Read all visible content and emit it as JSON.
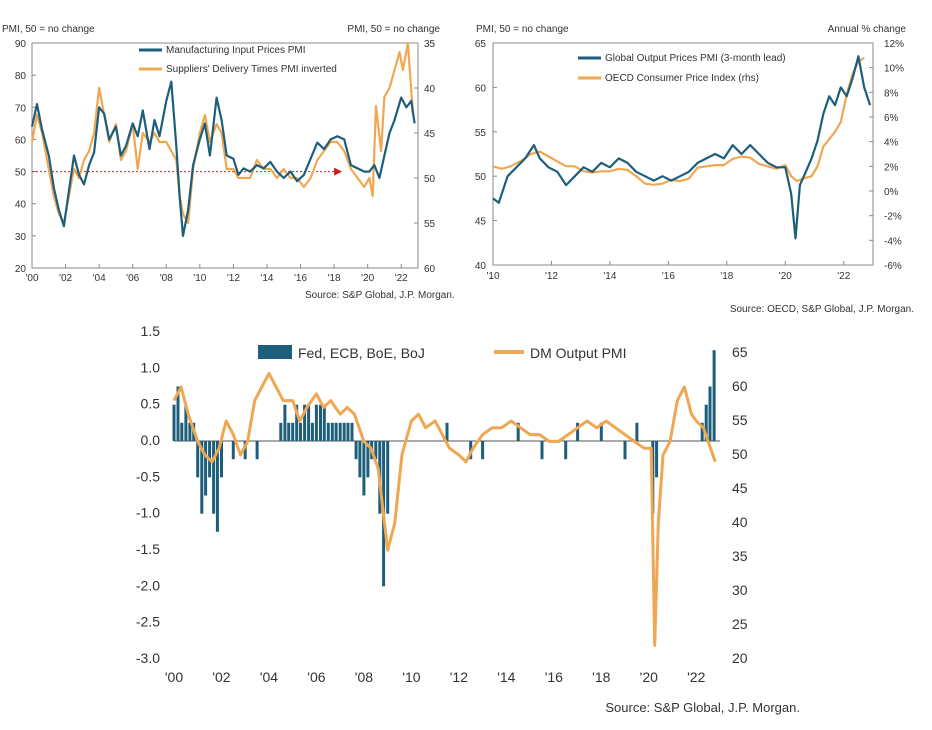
{
  "chart_data": [
    {
      "type": "line",
      "left_axis_title": "PMI, 50 = no change",
      "right_axis_title": "PMI, 50 = no change",
      "source": "Source: S&P Global, J.P. Morgan.",
      "x_ticks": [
        "'00",
        "'02",
        "'04",
        "'06",
        "'08",
        "'10",
        "'12",
        "'14",
        "'16",
        "'18",
        "'20",
        "'22"
      ],
      "left_ticks": [
        "90",
        "80",
        "70",
        "60",
        "50",
        "40",
        "30",
        "20"
      ],
      "right_ticks": [
        "35",
        "40",
        "45",
        "50",
        "55",
        "60"
      ],
      "xlim": [
        2000,
        2023
      ],
      "ylim_left": [
        20,
        90
      ],
      "ylim_right": [
        60,
        35
      ],
      "reference_line": {
        "y": 50,
        "x_end": 2018.0
      },
      "series": [
        {
          "name": "Manufacturing Input Prices PMI",
          "color": "#1d5f7a",
          "axis": "left",
          "x": [
            2000,
            2000.3,
            2000.6,
            2001,
            2001.3,
            2001.6,
            2001.9,
            2002.2,
            2002.5,
            2002.8,
            2003.1,
            2003.4,
            2003.7,
            2004,
            2004.3,
            2004.6,
            2005,
            2005.3,
            2005.6,
            2006,
            2006.3,
            2006.6,
            2007,
            2007.3,
            2007.6,
            2008,
            2008.3,
            2008.6,
            2008.8,
            2009.0,
            2009.3,
            2009.6,
            2010,
            2010.3,
            2010.6,
            2011,
            2011.3,
            2011.6,
            2012,
            2012.3,
            2012.6,
            2013,
            2013.4,
            2013.8,
            2014.2,
            2014.6,
            2015,
            2015.4,
            2015.8,
            2016.2,
            2016.6,
            2017,
            2017.4,
            2017.8,
            2018.2,
            2018.6,
            2019,
            2019.4,
            2019.8,
            2020.1,
            2020.4,
            2020.7,
            2021,
            2021.3,
            2021.6,
            2022,
            2022.3,
            2022.6,
            2022.8
          ],
          "values": [
            64,
            71,
            63,
            55,
            45,
            38,
            33,
            44,
            55,
            49,
            46,
            52,
            56,
            70,
            68,
            60,
            64,
            55,
            58,
            65,
            61,
            69,
            57,
            66,
            61,
            72,
            78,
            58,
            42,
            30,
            38,
            52,
            60,
            65,
            55,
            73,
            66,
            55,
            54,
            49,
            51,
            50,
            52,
            51,
            53,
            50,
            48,
            50,
            47,
            49,
            54,
            59,
            57,
            60,
            61,
            60,
            52,
            51,
            50,
            50,
            52,
            48,
            55,
            62,
            66,
            73,
            70,
            72,
            65
          ]
        },
        {
          "name": "Suppliers' Delivery Times PMI inverted",
          "color": "#f0a751",
          "axis": "right",
          "x": [
            2000,
            2000.3,
            2000.6,
            2001,
            2001.3,
            2001.6,
            2001.9,
            2002.2,
            2002.5,
            2002.8,
            2003.1,
            2003.4,
            2003.7,
            2004,
            2004.3,
            2004.6,
            2005,
            2005.3,
            2005.6,
            2006,
            2006.3,
            2006.6,
            2007,
            2007.3,
            2007.6,
            2008,
            2008.3,
            2008.6,
            2008.8,
            2009.0,
            2009.3,
            2009.6,
            2010,
            2010.3,
            2010.6,
            2011,
            2011.3,
            2011.6,
            2012,
            2012.3,
            2012.6,
            2013,
            2013.4,
            2013.8,
            2014.2,
            2014.6,
            2015,
            2015.4,
            2015.8,
            2016.2,
            2016.6,
            2017,
            2017.4,
            2017.8,
            2018.2,
            2018.6,
            2019,
            2019.4,
            2019.8,
            2020.1,
            2020.3,
            2020.5,
            2020.8,
            2021,
            2021.3,
            2021.6,
            2021.9,
            2022.1,
            2022.4,
            2022.7
          ],
          "values": [
            46,
            43,
            45,
            49,
            52,
            54,
            55,
            52,
            49,
            50,
            48,
            47,
            45,
            40,
            43,
            46,
            44,
            48,
            47,
            44,
            49,
            45,
            46,
            45,
            46,
            46,
            47,
            48,
            52,
            54,
            55,
            49,
            45,
            43,
            46,
            44,
            45,
            49,
            49,
            50,
            50,
            50,
            48,
            49,
            49,
            50,
            49,
            50,
            50,
            51,
            50,
            48,
            47,
            46,
            46,
            47,
            49,
            50,
            51,
            50,
            52,
            42,
            47,
            41,
            40,
            38,
            36,
            38,
            35,
            43
          ]
        }
      ]
    },
    {
      "type": "line",
      "left_axis_title": "PMI, 50 = no change",
      "right_axis_title": "Annual % change",
      "source": "Source: OECD, S&P Global, J.P. Morgan.",
      "x_ticks": [
        "'10",
        "'12",
        "'14",
        "'16",
        "'18",
        "'20",
        "'22"
      ],
      "left_ticks": [
        "65",
        "60",
        "55",
        "50",
        "45",
        "40"
      ],
      "right_ticks": [
        "12%",
        "10%",
        "8%",
        "6%",
        "4%",
        "2%",
        "0%",
        "-2%",
        "-4%",
        "-6%"
      ],
      "xlim": [
        2010,
        2023
      ],
      "ylim_left": [
        40,
        65
      ],
      "ylim_right": [
        -6,
        12
      ],
      "series": [
        {
          "name": "Global Output Prices PMI (3-month lead)",
          "color": "#1d5f7a",
          "axis": "left",
          "x": [
            2010,
            2010.2,
            2010.5,
            2010.8,
            2011.1,
            2011.4,
            2011.6,
            2011.9,
            2012.2,
            2012.5,
            2012.8,
            2013.1,
            2013.4,
            2013.7,
            2014,
            2014.3,
            2014.6,
            2014.9,
            2015.2,
            2015.5,
            2015.8,
            2016.1,
            2016.4,
            2016.7,
            2017,
            2017.3,
            2017.6,
            2017.9,
            2018.2,
            2018.5,
            2018.8,
            2019.1,
            2019.4,
            2019.7,
            2020,
            2020.2,
            2020.35,
            2020.5,
            2020.7,
            2020.9,
            2021.1,
            2021.3,
            2021.5,
            2021.7,
            2021.9,
            2022.1,
            2022.3,
            2022.5,
            2022.7,
            2022.9
          ],
          "values": [
            47.5,
            47,
            50,
            51,
            52,
            53.5,
            52,
            51,
            50.5,
            49,
            50,
            51,
            50.5,
            51.5,
            51,
            52,
            51.5,
            50.5,
            50,
            49.5,
            50,
            49.5,
            50,
            50.5,
            51.5,
            52,
            52.5,
            52,
            53.5,
            52.5,
            53.5,
            52.5,
            51.5,
            51,
            51,
            48,
            43,
            49,
            50.5,
            52,
            54,
            57,
            59,
            58,
            60,
            59,
            61,
            63.5,
            60,
            58
          ]
        },
        {
          "name": "OECD Consumer Price Index (rhs)",
          "color": "#f0a751",
          "axis": "right",
          "x": [
            2010,
            2010.3,
            2010.6,
            2011,
            2011.3,
            2011.6,
            2011.9,
            2012.2,
            2012.5,
            2012.8,
            2013.1,
            2013.4,
            2013.7,
            2014,
            2014.3,
            2014.6,
            2014.9,
            2015.2,
            2015.5,
            2015.8,
            2016.1,
            2016.4,
            2016.7,
            2017,
            2017.3,
            2017.6,
            2017.9,
            2018.2,
            2018.5,
            2018.8,
            2019.1,
            2019.4,
            2019.7,
            2020,
            2020.2,
            2020.4,
            2020.6,
            2020.9,
            2021.1,
            2021.3,
            2021.5,
            2021.7,
            2021.9,
            2022.1,
            2022.3,
            2022.5,
            2022.7
          ],
          "values": [
            2,
            1.8,
            2,
            2.5,
            3,
            3.2,
            2.8,
            2.4,
            2,
            2,
            1.6,
            1.5,
            1.6,
            1.6,
            1.8,
            1.7,
            1.2,
            0.6,
            0.5,
            0.6,
            0.9,
            0.8,
            1,
            1.9,
            2,
            2.1,
            2.1,
            2.6,
            2.8,
            2.7,
            2.2,
            2,
            1.8,
            2.1,
            1.2,
            0.8,
            1,
            1.2,
            2,
            3.6,
            4.2,
            4.8,
            5.6,
            7.8,
            9.5,
            10.5,
            10.8
          ]
        }
      ]
    },
    {
      "type": "bar+line",
      "source": "Source: S&P Global, J.P. Morgan.",
      "x_ticks": [
        "'00",
        "'02",
        "'04",
        "'06",
        "'08",
        "'10",
        "'12",
        "'14",
        "'16",
        "'18",
        "'20",
        "'22"
      ],
      "left_ticks": [
        "1.5",
        "1.0",
        "0.5",
        "0.0",
        "-0.5",
        "-1.0",
        "-1.5",
        "-2.0",
        "-2.5",
        "-3.0"
      ],
      "right_ticks": [
        "65",
        "60",
        "55",
        "50",
        "45",
        "40",
        "35",
        "30",
        "25",
        "20"
      ],
      "xlim": [
        2000,
        2023
      ],
      "ylim_left": [
        -3,
        1.5
      ],
      "ylim_right": [
        20,
        65
      ],
      "series": [
        {
          "name": "Fed, ECB, BoE, BoJ",
          "color": "#1d5f7a",
          "axis": "left",
          "x": [
            2000,
            2000.17,
            2000.33,
            2000.5,
            2000.67,
            2000.83,
            2001,
            2001.17,
            2001.33,
            2001.5,
            2001.67,
            2001.83,
            2002,
            2002.5,
            2003,
            2003.5,
            2004.5,
            2004.67,
            2004.83,
            2005,
            2005.17,
            2005.33,
            2005.5,
            2005.67,
            2005.83,
            2006,
            2006.17,
            2006.33,
            2006.5,
            2006.67,
            2006.83,
            2007,
            2007.17,
            2007.33,
            2007.5,
            2007.67,
            2007.83,
            2008,
            2008.17,
            2008.33,
            2008.5,
            2008.67,
            2008.83,
            2009,
            2011.5,
            2012.5,
            2013,
            2014.5,
            2015.5,
            2016.5,
            2017,
            2018,
            2019,
            2019.5,
            2020.17,
            2020.33,
            2022.25,
            2022.42,
            2022.58,
            2022.75
          ],
          "values": [
            0.5,
            0.75,
            0.25,
            0.5,
            0.25,
            0.25,
            -0.5,
            -1.0,
            -0.75,
            -0.5,
            -1.0,
            -1.25,
            -0.5,
            -0.25,
            -0.25,
            -0.25,
            0.25,
            0.5,
            0.25,
            0.25,
            0.5,
            0.25,
            0.5,
            0.5,
            0.25,
            0.5,
            0.5,
            0.5,
            0.25,
            0.25,
            0.25,
            0.25,
            0.25,
            0.25,
            0.25,
            -0.25,
            -0.5,
            -0.75,
            -0.5,
            -0.25,
            -0.25,
            -1.0,
            -2.0,
            -1.0,
            0.25,
            -0.25,
            -0.25,
            0.25,
            -0.25,
            -0.25,
            0.25,
            0.25,
            -0.25,
            0.25,
            -1.0,
            -0.5,
            0.25,
            0.5,
            0.75,
            1.25
          ]
        },
        {
          "name": "DM Output PMI",
          "color": "#f0a751",
          "axis": "right",
          "x": [
            2000,
            2000.3,
            2000.6,
            2001,
            2001.3,
            2001.6,
            2001.9,
            2002.2,
            2002.5,
            2002.8,
            2003.1,
            2003.4,
            2003.7,
            2004,
            2004.3,
            2004.6,
            2005,
            2005.3,
            2005.6,
            2006,
            2006.3,
            2006.6,
            2007,
            2007.3,
            2007.6,
            2008,
            2008.3,
            2008.6,
            2008.8,
            2009.0,
            2009.3,
            2009.6,
            2010,
            2010.3,
            2010.6,
            2011,
            2011.3,
            2011.6,
            2012,
            2012.3,
            2012.6,
            2013,
            2013.4,
            2013.8,
            2014.2,
            2014.6,
            2015,
            2015.4,
            2015.8,
            2016.2,
            2016.6,
            2017,
            2017.4,
            2017.8,
            2018.2,
            2018.6,
            2019,
            2019.4,
            2019.8,
            2020.1,
            2020.25,
            2020.4,
            2020.6,
            2020.9,
            2021.2,
            2021.5,
            2021.8,
            2022.0,
            2022.3,
            2022.5,
            2022.8
          ],
          "values": [
            58,
            60,
            56,
            52,
            50,
            49,
            51,
            55,
            53,
            50,
            52,
            58,
            60,
            62,
            60,
            58,
            58,
            55,
            57,
            59,
            57,
            58,
            56,
            57,
            56,
            52,
            51,
            48,
            42,
            36,
            40,
            50,
            55,
            56,
            54,
            55,
            53,
            51,
            50,
            49,
            51,
            53,
            54,
            54,
            55,
            54,
            53,
            53,
            52,
            52,
            53,
            54,
            55,
            54,
            55,
            54,
            53,
            52,
            51,
            51,
            22,
            40,
            50,
            52,
            58,
            60,
            56,
            55,
            54,
            52,
            49
          ]
        }
      ]
    }
  ]
}
